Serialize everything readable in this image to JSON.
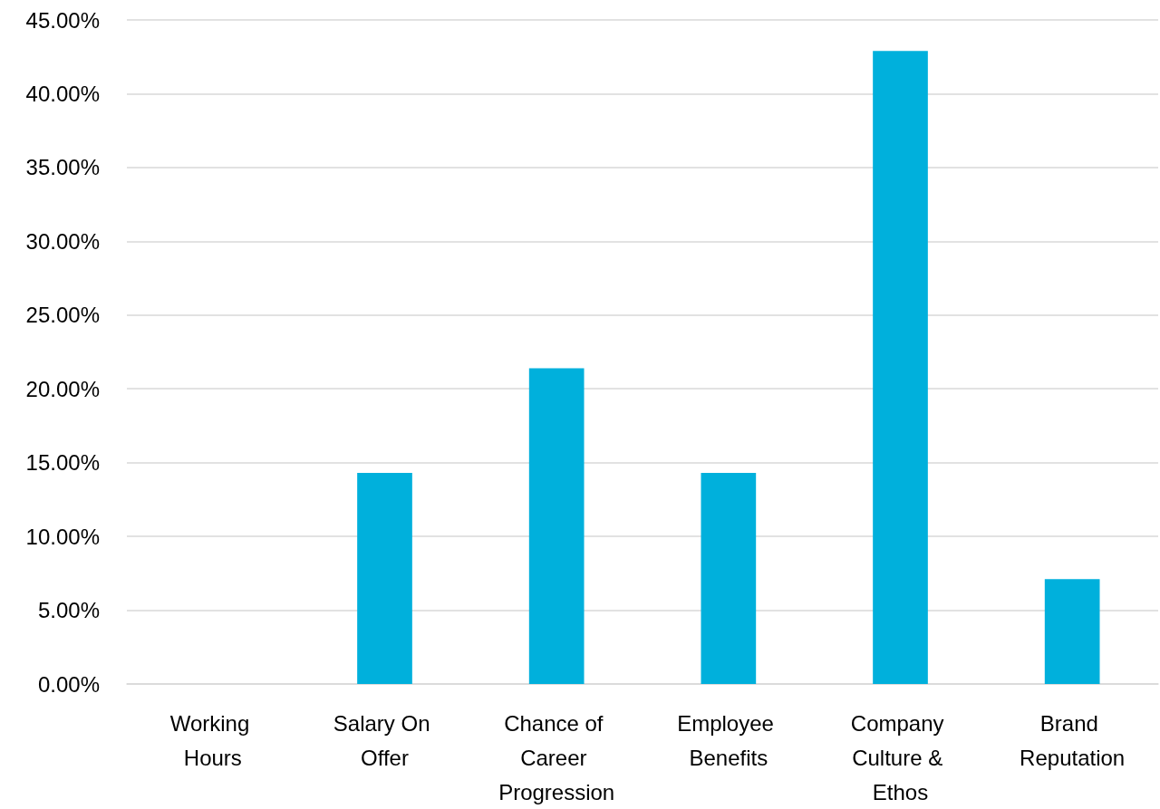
{
  "chart_data": {
    "type": "bar",
    "categories": [
      "Working Hours",
      "Salary On Offer",
      "Chance of Career Progression",
      "Employee Benefits",
      "Company Culture & Ethos",
      "Brand Reputation"
    ],
    "values": [
      0,
      14.3,
      21.4,
      14.3,
      42.9,
      7.1
    ],
    "color": "#00b0dc",
    "ylim": [
      0,
      45
    ],
    "yticks": [
      {
        "value": 0,
        "label": "0.00%"
      },
      {
        "value": 5,
        "label": "5.00%"
      },
      {
        "value": 10,
        "label": "10.00%"
      },
      {
        "value": 15,
        "label": "15.00%"
      },
      {
        "value": 20,
        "label": "20.00%"
      },
      {
        "value": 25,
        "label": "25.00%"
      },
      {
        "value": 30,
        "label": "30.00%"
      },
      {
        "value": 35,
        "label": "35.00%"
      },
      {
        "value": 40,
        "label": "40.00%"
      },
      {
        "value": 45,
        "label": "45.00%"
      }
    ],
    "grid": "y"
  }
}
